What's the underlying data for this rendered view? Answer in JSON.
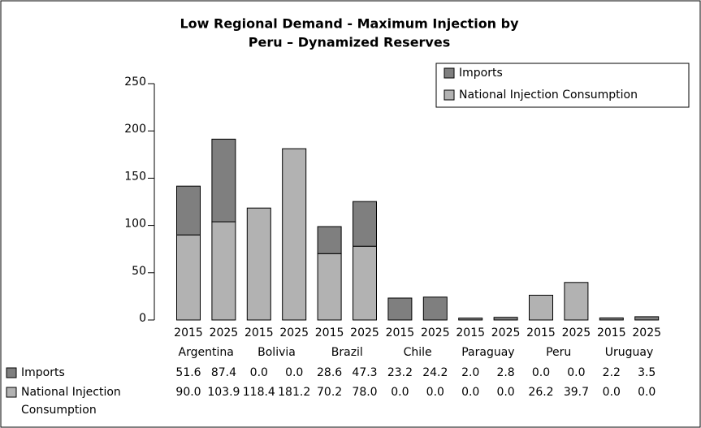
{
  "chart_data": {
    "type": "bar",
    "stacked": true,
    "title": [
      "Low Regional Demand - Maximum Injection by",
      "Peru – Dynamized Reserves"
    ],
    "categories": [
      "2015",
      "2025",
      "2015",
      "2025",
      "2015",
      "2025",
      "2015",
      "2025",
      "2015",
      "2025",
      "2015",
      "2025",
      "2015",
      "2025"
    ],
    "groups": [
      "Argentina",
      "Bolivia",
      "Brazil",
      "Chile",
      "Paraguay",
      "Peru",
      "Uruguay"
    ],
    "series": [
      {
        "name": "National Injection Consumption",
        "color": "#b2b2b2",
        "values": [
          90.0,
          103.9,
          118.4,
          181.2,
          70.2,
          78.0,
          0,
          0,
          0,
          0,
          26.2,
          39.7,
          0,
          0
        ],
        "value_labels": [
          "90.0",
          "103.9",
          "118.4",
          "181.2",
          "70.2",
          "78.0",
          "0.0",
          "0.0",
          "0.0",
          "0.0",
          "26.2",
          "39.7",
          "0.0",
          "0.0"
        ]
      },
      {
        "name": "Imports",
        "color": "#7f7f7f",
        "values": [
          51.6,
          87.4,
          0,
          0,
          28.6,
          47.3,
          23.2,
          24.2,
          2.0,
          2.8,
          0,
          0,
          2.2,
          3.5
        ],
        "value_labels": [
          "51.6",
          "87.4",
          "0.0",
          "0.0",
          "28.6",
          "47.3",
          "23.2",
          "24.2",
          "2.0",
          "2.8",
          "0.0",
          "0.0",
          "2.2",
          "3.5"
        ]
      }
    ],
    "ylim": [
      0,
      250
    ],
    "yticks": [
      0,
      50,
      100,
      150,
      200,
      250
    ],
    "grid": false,
    "legend": "top-right"
  }
}
